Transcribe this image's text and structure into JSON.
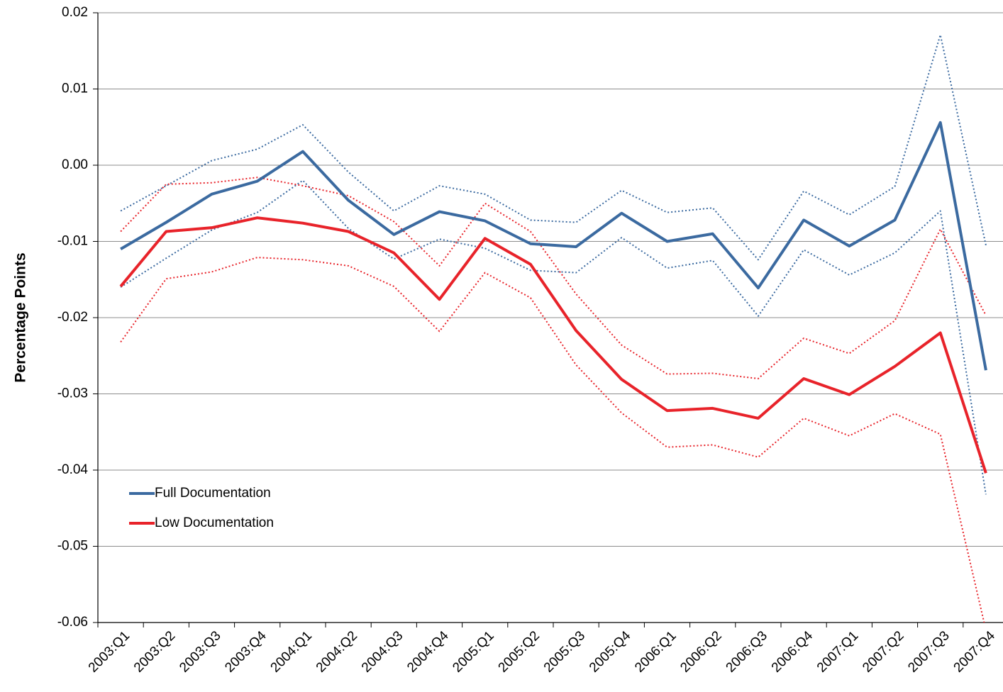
{
  "chart_data": {
    "type": "line",
    "y_label": "Percentage Points",
    "categories": [
      "2003:Q1",
      "2003:Q2",
      "2003:Q3",
      "2003:Q4",
      "2004:Q1",
      "2004:Q2",
      "2004:Q3",
      "2004:Q4",
      "2005:Q1",
      "2005:Q2",
      "2005:Q3",
      "2005:Q4",
      "2006:Q1",
      "2006:Q2",
      "2006:Q3",
      "2006:Q4",
      "2007:Q1",
      "2007:Q2",
      "2007:Q3",
      "2007:Q4"
    ],
    "series": [
      {
        "name": "Full Documentation",
        "color": "#3b6aa0",
        "values": [
          -0.011,
          -0.0075,
          -0.0038,
          -0.0021,
          0.0018,
          -0.0046,
          -0.0091,
          -0.0061,
          -0.0073,
          -0.0103,
          -0.0107,
          -0.0063,
          -0.01,
          -0.009,
          -0.0161,
          -0.0072,
          -0.0106,
          -0.0072,
          0.0056,
          -0.0269
        ]
      },
      {
        "name": "Low Documentation",
        "color": "#e8232a",
        "values": [
          -0.0159,
          -0.0087,
          -0.0082,
          -0.0069,
          -0.0076,
          -0.0087,
          -0.0115,
          -0.0176,
          -0.0096,
          -0.013,
          -0.0217,
          -0.0281,
          -0.0322,
          -0.0319,
          -0.0332,
          -0.028,
          -0.0301,
          -0.0264,
          -0.022,
          -0.0404
        ]
      },
      {
        "color": "#3b6aa0",
        "dotted": true,
        "values": [
          -0.006,
          -0.0027,
          0.0006,
          0.0021,
          0.0053,
          -0.0009,
          -0.006,
          -0.0027,
          -0.0038,
          -0.0072,
          -0.0075,
          -0.0033,
          -0.0062,
          -0.0056,
          -0.0124,
          -0.0034,
          -0.0065,
          -0.0028,
          0.0171,
          -0.0105
        ]
      },
      {
        "color": "#3b6aa0",
        "dotted": true,
        "values": [
          -0.016,
          -0.0122,
          -0.0085,
          -0.0062,
          -0.002,
          -0.0083,
          -0.0123,
          -0.0097,
          -0.0109,
          -0.0138,
          -0.0141,
          -0.0095,
          -0.0135,
          -0.0125,
          -0.0198,
          -0.0111,
          -0.0144,
          -0.0115,
          -0.006,
          -0.0432
        ]
      },
      {
        "color": "#e8232a",
        "dotted": true,
        "values": [
          -0.0087,
          -0.0025,
          -0.0023,
          -0.0016,
          -0.0027,
          -0.004,
          -0.0074,
          -0.0132,
          -0.005,
          -0.0087,
          -0.0169,
          -0.0236,
          -0.0274,
          -0.0273,
          -0.028,
          -0.0227,
          -0.0247,
          -0.0204,
          -0.0084,
          -0.0197
        ]
      },
      {
        "color": "#e8232a",
        "dotted": true,
        "values": [
          -0.0232,
          -0.0149,
          -0.014,
          -0.0121,
          -0.0124,
          -0.0132,
          -0.0159,
          -0.0218,
          -0.0141,
          -0.0174,
          -0.0262,
          -0.0325,
          -0.037,
          -0.0367,
          -0.0383,
          -0.0332,
          -0.0355,
          -0.0326,
          -0.0353,
          -0.061
        ]
      }
    ],
    "ylim": [
      -0.06,
      0.02
    ],
    "yticks": [
      0.02,
      0.01,
      {
        "value": 0,
        "label": "0.00"
      },
      -0.01,
      -0.02,
      -0.03,
      -0.04,
      -0.05,
      -0.06
    ],
    "grid": true
  }
}
